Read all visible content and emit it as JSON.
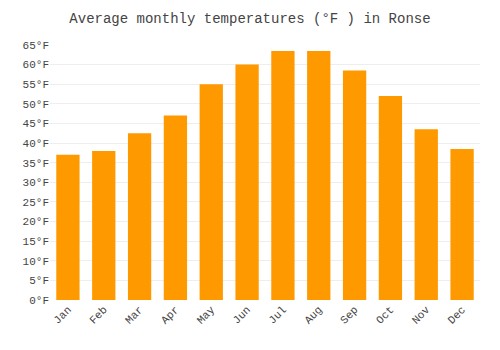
{
  "chart_data": {
    "type": "bar",
    "title": "Average monthly temperatures (°F ) in Ronse",
    "categories": [
      "Jan",
      "Feb",
      "Mar",
      "Apr",
      "May",
      "Jun",
      "Jul",
      "Aug",
      "Sep",
      "Oct",
      "Nov",
      "Dec"
    ],
    "values": [
      37,
      38,
      42.5,
      47,
      55,
      60,
      63.5,
      63.5,
      58.5,
      52,
      43.5,
      38.5
    ],
    "color": "#FF9900",
    "ylim": [
      0,
      65
    ],
    "yticks": [
      {
        "value": 0,
        "label": "0°F"
      },
      {
        "value": 5,
        "label": "5°F"
      },
      {
        "value": 10,
        "label": "10°F"
      },
      {
        "value": 15,
        "label": "15°F"
      },
      {
        "value": 20,
        "label": "20°F"
      },
      {
        "value": 25,
        "label": "25°F"
      },
      {
        "value": 30,
        "label": "30°F"
      },
      {
        "value": 35,
        "label": "35°F"
      },
      {
        "value": 40,
        "label": "40°F"
      },
      {
        "value": 45,
        "label": "45°F"
      },
      {
        "value": 50,
        "label": "50°F"
      },
      {
        "value": 55,
        "label": "55°F"
      },
      {
        "value": 60,
        "label": "60°F"
      },
      {
        "value": 65,
        "label": "65°F"
      }
    ],
    "grid": true
  }
}
